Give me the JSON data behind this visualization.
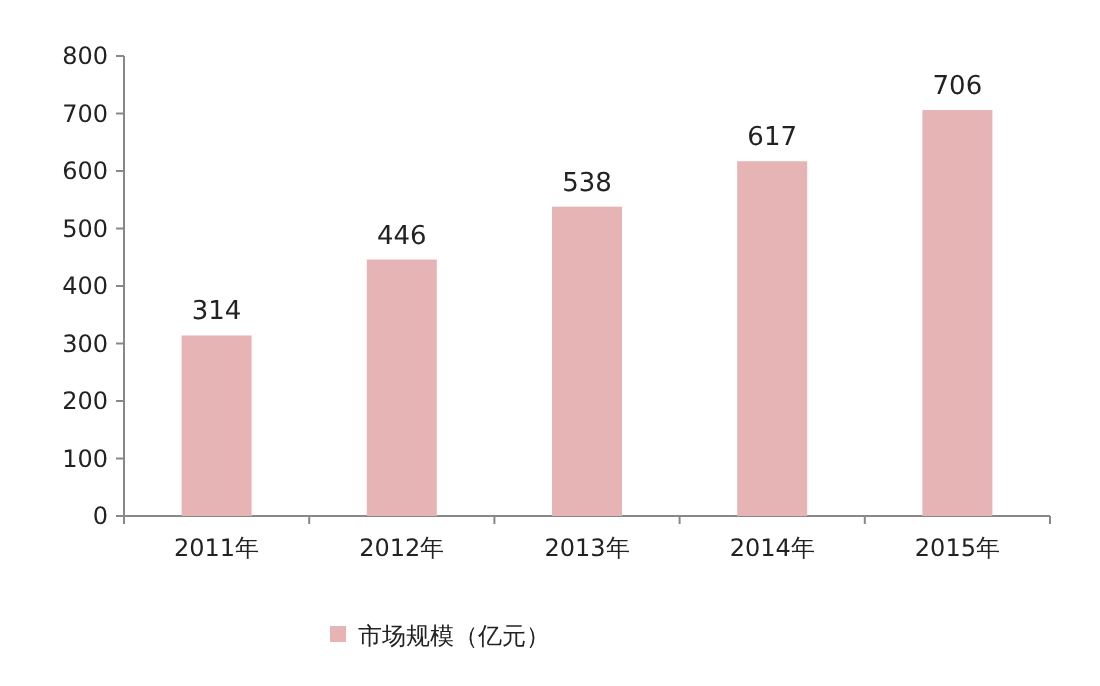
{
  "chart_data": {
    "type": "bar",
    "categories": [
      "2011年",
      "2012年",
      "2013年",
      "2014年",
      "2015年"
    ],
    "series": [
      {
        "name": "市场规模（亿元）",
        "color": "#e6b4b4",
        "values": [
          314,
          446,
          538,
          617,
          706
        ]
      }
    ],
    "ylim": [
      0,
      800
    ],
    "yticks": [
      0,
      100,
      200,
      300,
      400,
      500,
      600,
      700,
      800
    ],
    "data_labels": true,
    "legend": "bottom",
    "grid": false
  }
}
